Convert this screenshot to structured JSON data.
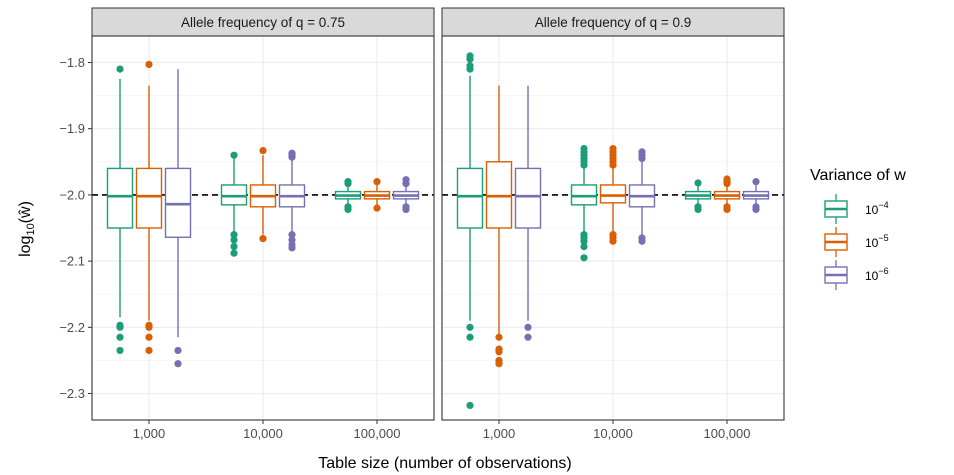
{
  "chart_data": {
    "type": "boxplot",
    "xlabel": "Table size (number of observations)",
    "ylabel_main": "log",
    "ylabel_sub": "10",
    "ylabel_tail": "(ŵ)",
    "ylim": [
      -2.34,
      -1.76
    ],
    "yticks": [
      -2.3,
      -2.2,
      -2.1,
      -2.0,
      -1.9,
      -1.8
    ],
    "ytick_labels": [
      "−2.3",
      "−2.2",
      "−2.1",
      "−2.0",
      "−1.9",
      "−1.8"
    ],
    "categories": [
      "1,000",
      "10,000",
      "100,000"
    ],
    "reference_line": -2.0,
    "legend": {
      "title": "Variance of w",
      "position": "right",
      "entries": [
        {
          "base": "10",
          "exp": "−4",
          "color": "#1b9e77"
        },
        {
          "base": "10",
          "exp": "−5",
          "color": "#d95f02"
        },
        {
          "base": "10",
          "exp": "−6",
          "color": "#7570b3"
        }
      ]
    },
    "panels": [
      {
        "title": "Allele frequency of q = 0.75",
        "groups": [
          {
            "category": "1,000",
            "boxes": [
              {
                "series": 0,
                "lower_whisker": -2.185,
                "q1": -2.05,
                "median": -2.002,
                "q3": -1.96,
                "upper_whisker": -1.825,
                "outliers": [
                  -1.81,
                  -2.197,
                  -2.2,
                  -2.215,
                  -2.235
                ]
              },
              {
                "series": 1,
                "lower_whisker": -2.19,
                "q1": -2.05,
                "median": -2.002,
                "q3": -1.96,
                "upper_whisker": -1.835,
                "outliers": [
                  -1.803,
                  -2.197,
                  -2.2,
                  -2.215,
                  -2.235
                ]
              },
              {
                "series": 2,
                "lower_whisker": -2.215,
                "q1": -2.064,
                "median": -2.014,
                "q3": -1.96,
                "upper_whisker": -1.81,
                "outliers": [
                  -2.235,
                  -2.255
                ]
              }
            ]
          },
          {
            "category": "10,000",
            "boxes": [
              {
                "series": 0,
                "lower_whisker": -2.055,
                "q1": -2.015,
                "median": -2.002,
                "q3": -1.985,
                "upper_whisker": -1.945,
                "outliers": [
                  -1.94,
                  -2.06,
                  -2.068,
                  -2.078,
                  -2.088
                ]
              },
              {
                "series": 1,
                "lower_whisker": -2.06,
                "q1": -2.018,
                "median": -2.002,
                "q3": -1.985,
                "upper_whisker": -1.94,
                "outliers": [
                  -1.933,
                  -2.066
                ]
              },
              {
                "series": 2,
                "lower_whisker": -2.055,
                "q1": -2.018,
                "median": -2.002,
                "q3": -1.985,
                "upper_whisker": -1.945,
                "outliers": [
                  -1.937,
                  -1.94,
                  -1.943,
                  -2.06,
                  -2.068,
                  -2.075,
                  -2.08
                ]
              }
            ]
          },
          {
            "category": "100,000",
            "boxes": [
              {
                "series": 0,
                "lower_whisker": -2.016,
                "q1": -2.006,
                "median": -2.001,
                "q3": -1.995,
                "upper_whisker": -1.985,
                "outliers": [
                  -1.98,
                  -1.983,
                  -2.018,
                  -2.022
                ]
              },
              {
                "series": 1,
                "lower_whisker": -2.016,
                "q1": -2.006,
                "median": -2.001,
                "q3": -1.995,
                "upper_whisker": -1.985,
                "outliers": [
                  -1.98,
                  -2.02
                ]
              },
              {
                "series": 2,
                "lower_whisker": -2.016,
                "q1": -2.006,
                "median": -2.001,
                "q3": -1.995,
                "upper_whisker": -1.985,
                "outliers": [
                  -1.977,
                  -1.983,
                  -2.018,
                  -2.022
                ]
              }
            ]
          }
        ]
      },
      {
        "title": "Allele frequency of q = 0.9",
        "groups": [
          {
            "category": "1,000",
            "boxes": [
              {
                "series": 0,
                "lower_whisker": -2.19,
                "q1": -2.05,
                "median": -2.002,
                "q3": -1.96,
                "upper_whisker": -1.82,
                "outliers": [
                  -1.79,
                  -1.795,
                  -1.805,
                  -1.81,
                  -2.2,
                  -2.215,
                  -2.318
                ]
              },
              {
                "series": 1,
                "lower_whisker": -2.21,
                "q1": -2.05,
                "median": -2.002,
                "q3": -1.95,
                "upper_whisker": -1.835,
                "outliers": [
                  -2.215,
                  -2.233,
                  -2.237,
                  -2.25,
                  -2.255
                ]
              },
              {
                "series": 2,
                "lower_whisker": -2.19,
                "q1": -2.05,
                "median": -2.002,
                "q3": -1.96,
                "upper_whisker": -1.835,
                "outliers": [
                  -2.2,
                  -2.215
                ]
              }
            ]
          },
          {
            "category": "10,000",
            "boxes": [
              {
                "series": 0,
                "lower_whisker": -2.055,
                "q1": -2.015,
                "median": -2.002,
                "q3": -1.985,
                "upper_whisker": -1.945,
                "outliers": [
                  -1.93,
                  -1.935,
                  -1.94,
                  -1.945,
                  -1.95,
                  -1.955,
                  -2.06,
                  -2.065,
                  -2.07,
                  -2.078,
                  -2.095
                ]
              },
              {
                "series": 1,
                "lower_whisker": -2.055,
                "q1": -2.012,
                "median": -2.001,
                "q3": -1.985,
                "upper_whisker": -1.945,
                "outliers": [
                  -1.93,
                  -1.935,
                  -1.94,
                  -1.945,
                  -1.95,
                  -1.955,
                  -2.06,
                  -2.065,
                  -2.07
                ]
              },
              {
                "series": 2,
                "lower_whisker": -2.06,
                "q1": -2.018,
                "median": -2.002,
                "q3": -1.985,
                "upper_whisker": -1.945,
                "outliers": [
                  -1.935,
                  -1.94,
                  -1.945,
                  -2.065,
                  -2.07
                ]
              }
            ]
          },
          {
            "category": "100,000",
            "boxes": [
              {
                "series": 0,
                "lower_whisker": -2.016,
                "q1": -2.006,
                "median": -2.001,
                "q3": -1.995,
                "upper_whisker": -1.985,
                "outliers": [
                  -1.982,
                  -2.018,
                  -2.022
                ]
              },
              {
                "series": 1,
                "lower_whisker": -2.016,
                "q1": -2.006,
                "median": -2.001,
                "q3": -1.995,
                "upper_whisker": -1.985,
                "outliers": [
                  -1.976,
                  -1.98,
                  -1.983,
                  -2.018,
                  -2.022
                ]
              },
              {
                "series": 2,
                "lower_whisker": -2.016,
                "q1": -2.006,
                "median": -2.001,
                "q3": -1.995,
                "upper_whisker": -1.985,
                "outliers": [
                  -1.98,
                  -2.018,
                  -2.022
                ]
              }
            ]
          }
        ]
      }
    ]
  }
}
